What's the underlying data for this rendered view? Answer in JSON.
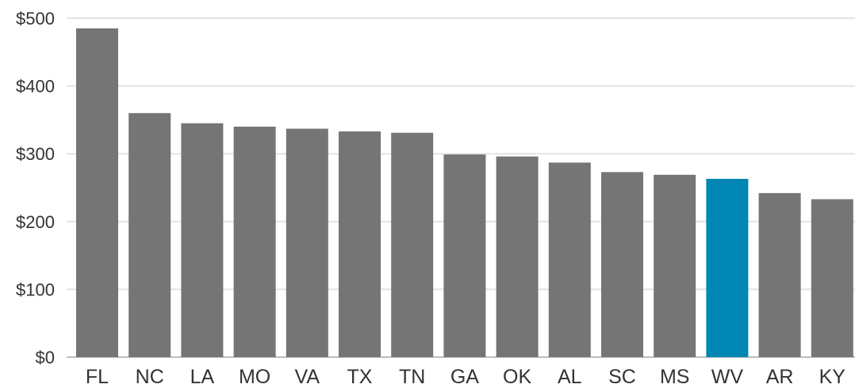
{
  "chart_data": {
    "type": "bar",
    "categories": [
      "FL",
      "NC",
      "LA",
      "MO",
      "VA",
      "TX",
      "TN",
      "GA",
      "OK",
      "AL",
      "SC",
      "MS",
      "WV",
      "AR",
      "KY"
    ],
    "values": [
      485,
      360,
      345,
      340,
      337,
      333,
      331,
      299,
      296,
      287,
      273,
      269,
      263,
      242,
      233
    ],
    "highlight": "WV",
    "title": "",
    "xlabel": "",
    "ylabel": "",
    "ylim": [
      0,
      500
    ],
    "yticks": [
      0,
      100,
      200,
      300,
      400,
      500
    ],
    "ytick_labels": [
      "$0",
      "$100",
      "$200",
      "$300",
      "$400",
      "$500"
    ],
    "grid": "horizontal",
    "legend": "none",
    "colors": {
      "bar": "#757575",
      "highlight": "#0086b3",
      "grid": "#e3e3e3",
      "text": "#333333"
    }
  }
}
